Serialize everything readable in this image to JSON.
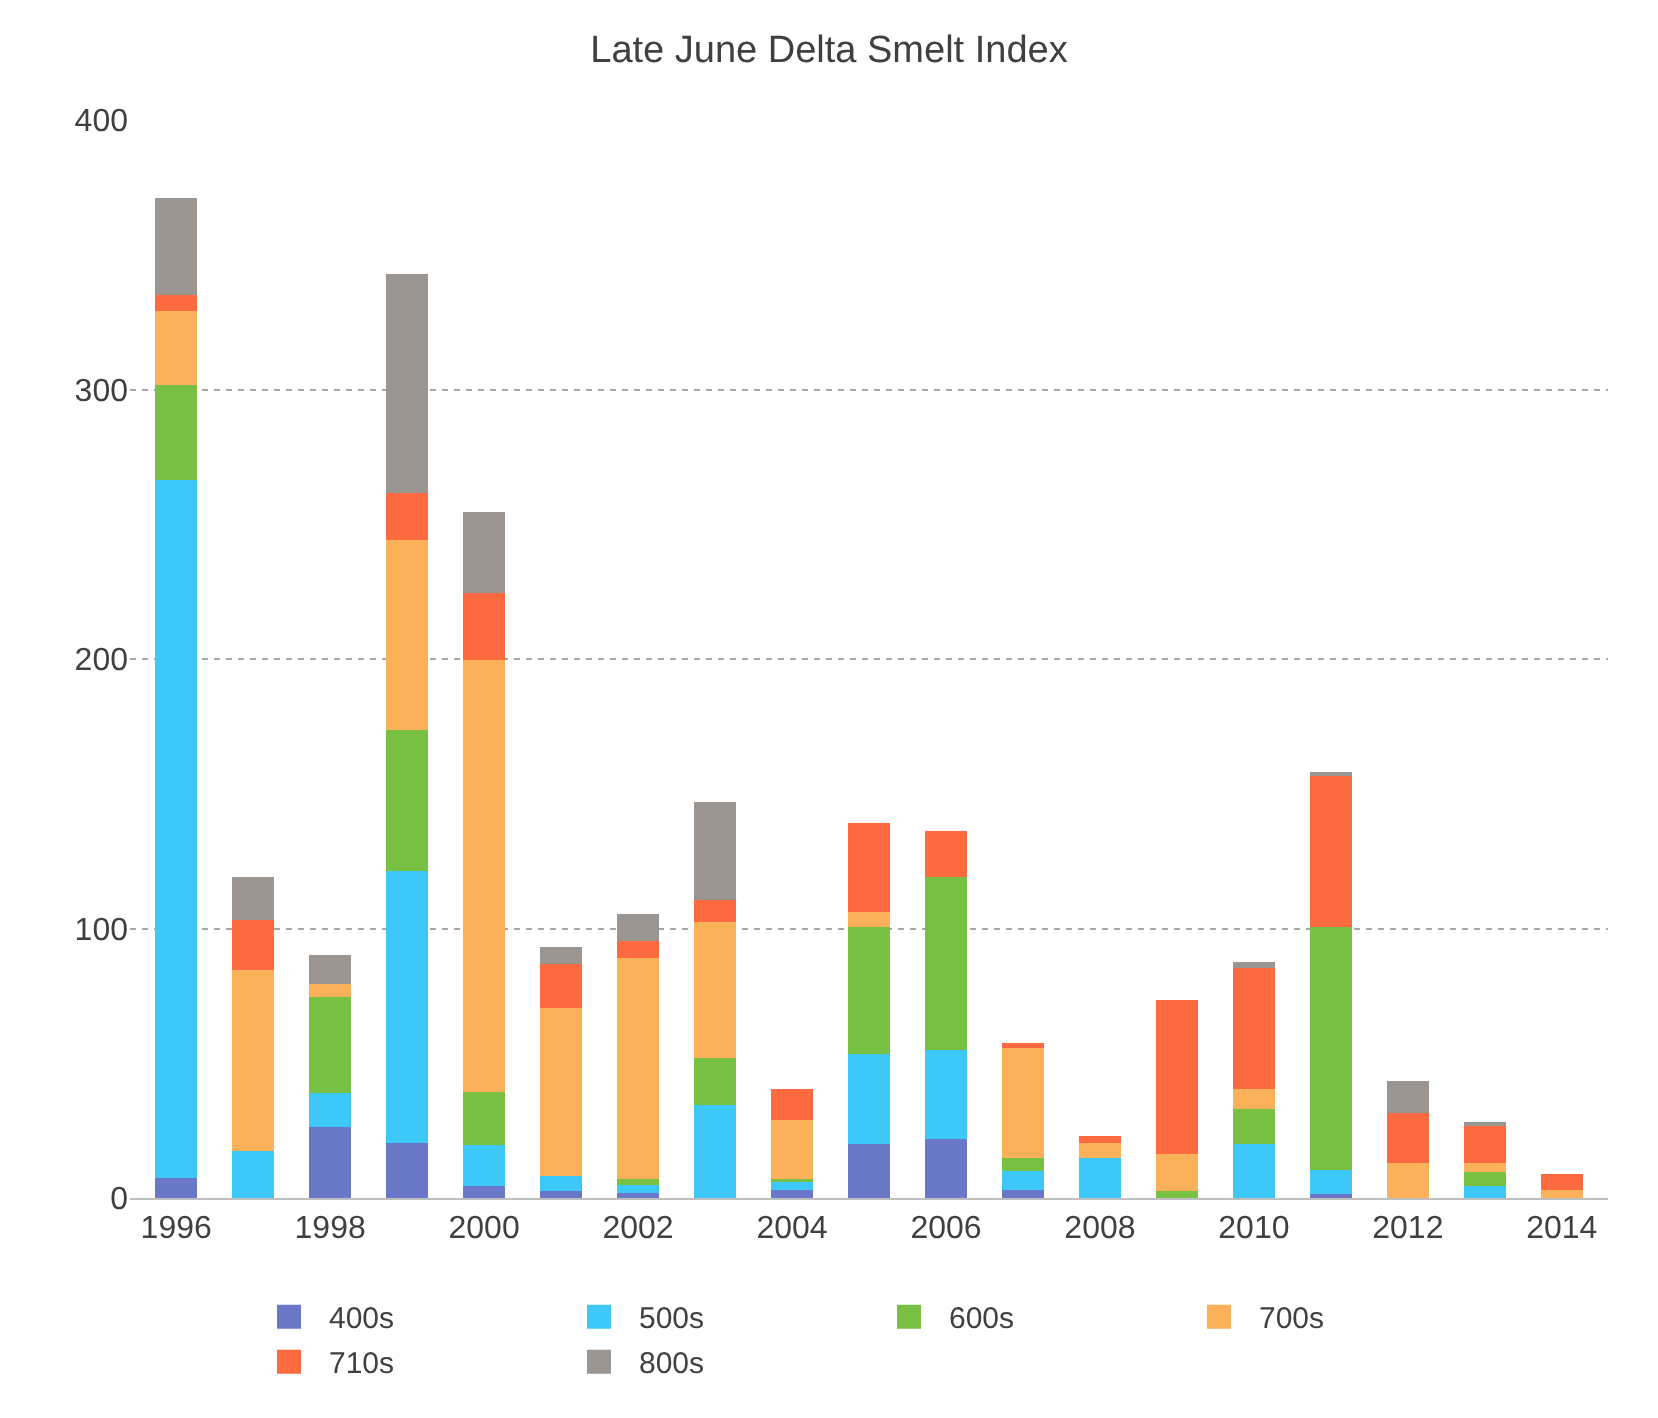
{
  "chart_data": {
    "type": "bar",
    "title": "Late June Delta Smelt Index",
    "stacked": true,
    "categories": [
      "1996",
      null,
      "1998",
      null,
      "2000",
      null,
      "2002",
      null,
      "2004",
      null,
      "2006",
      null,
      "2008",
      null,
      "2010",
      null,
      "2012",
      null,
      "2014"
    ],
    "series": [
      {
        "name": "400s",
        "color": "#6b78c8",
        "values": [
          7.5,
          0,
          26.5,
          20.5,
          4.5,
          2.5,
          2,
          0,
          3,
          20,
          22,
          3,
          0,
          0,
          0,
          1.5,
          0,
          0,
          0
        ]
      },
      {
        "name": "500s",
        "color": "#3ec8f7",
        "values": [
          259,
          17.5,
          12.5,
          101,
          15,
          5.5,
          3,
          34.5,
          3,
          33.5,
          33,
          7,
          15,
          0,
          20,
          9,
          0,
          4.5,
          0
        ]
      },
      {
        "name": "600s",
        "color": "#77c043",
        "values": [
          35,
          0,
          35.5,
          52,
          20,
          0,
          2,
          17.5,
          1,
          47,
          64,
          5,
          0,
          2.5,
          13,
          90,
          0,
          5,
          0
        ]
      },
      {
        "name": "700s",
        "color": "#fbb15a",
        "values": [
          27.5,
          67,
          5,
          70.5,
          160,
          62.5,
          82,
          50.5,
          22,
          5.5,
          0,
          40.5,
          5.5,
          14,
          7.5,
          0,
          13,
          3.5,
          3
        ]
      },
      {
        "name": "710s",
        "color": "#fd6a3f",
        "values": [
          6,
          18.5,
          0,
          17.5,
          25,
          16.5,
          6.5,
          8,
          11.5,
          33,
          17,
          2,
          2.5,
          57,
          45,
          56.5,
          18.5,
          14,
          6
        ]
      },
      {
        "name": "800s",
        "color": "#9a9591",
        "values": [
          36,
          16,
          10.5,
          81.5,
          30,
          6,
          10,
          36.5,
          0,
          0,
          0,
          0,
          0,
          0,
          2,
          1,
          12,
          1,
          0
        ]
      }
    ],
    "ylim": [
      0,
      400
    ],
    "yticks": [
      0,
      100,
      200,
      300,
      400
    ],
    "grid": "y",
    "legend": "bottom"
  }
}
